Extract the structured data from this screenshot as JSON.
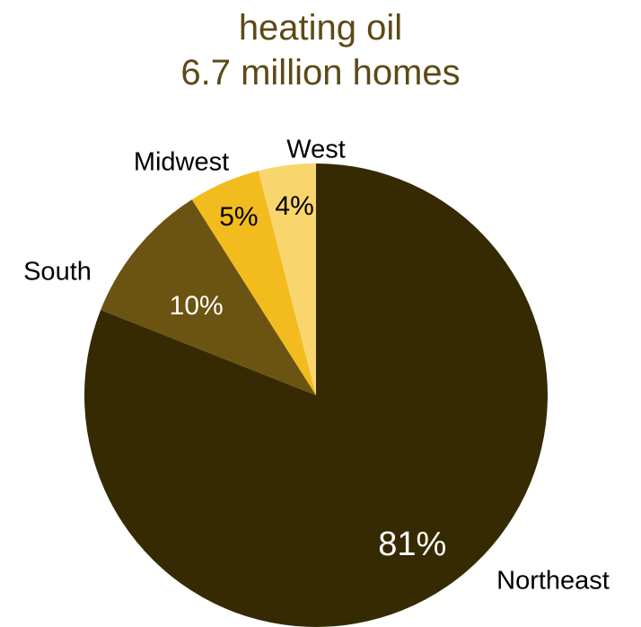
{
  "chart_data": {
    "type": "pie",
    "title": [
      "heating oil",
      "6.7 million homes"
    ],
    "slices": [
      {
        "name": "Northeast",
        "label": "Northeast",
        "value": 81,
        "value_label": "81%",
        "color": "#362a03",
        "value_label_color": "#ffffff"
      },
      {
        "name": "South",
        "label": "South",
        "value": 10,
        "value_label": "10%",
        "color": "#6b5411",
        "value_label_color": "#ffffff"
      },
      {
        "name": "Midwest",
        "label": "Midwest",
        "value": 5,
        "value_label": "5%",
        "color": "#f2bc1e",
        "value_label_color": "#000000"
      },
      {
        "name": "West",
        "label": "West",
        "value": 4,
        "value_label": "4%",
        "color": "#f9d56e",
        "value_label_color": "#000000"
      }
    ],
    "start": "12 o'clock",
    "direction": "clockwise",
    "legend": "none"
  }
}
